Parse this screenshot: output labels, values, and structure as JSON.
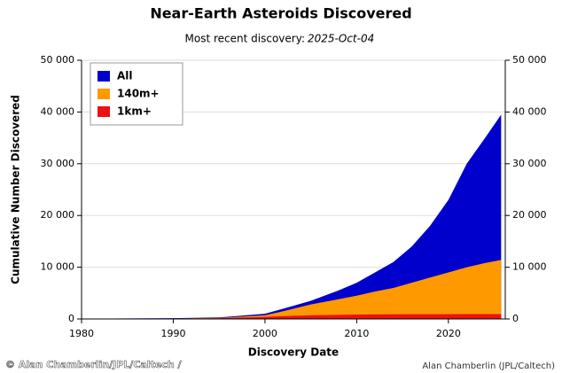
{
  "chart_data": {
    "type": "area",
    "title": "Near-Earth Asteroids Discovered",
    "subtitle": "Most recent discovery:",
    "subtitle_date": "2025-Oct-04",
    "x_label": "Discovery Date",
    "y_label": "Cumulative Number Discovered",
    "credit": "Alan Chamberlin (JPL/Caltech)",
    "watermark": "© Alan Chamberlin/JPL/Caltech /",
    "x": [
      1980,
      1990,
      1995,
      2000,
      2002,
      2005,
      2008,
      2010,
      2012,
      2014,
      2016,
      2018,
      2020,
      2022,
      2024,
      2025.75
    ],
    "series": [
      {
        "name": "All",
        "color": "#0000cc",
        "values": [
          50,
          150,
          300,
          1000,
          2000,
          3500,
          5500,
          7000,
          9000,
          11000,
          14000,
          18000,
          23000,
          30000,
          35000,
          39500
        ]
      },
      {
        "name": "140m+",
        "color": "#ff9900",
        "values": [
          20,
          80,
          200,
          700,
          1500,
          2800,
          3800,
          4500,
          5300,
          6000,
          7000,
          8000,
          9000,
          10000,
          10800,
          11400
        ]
      },
      {
        "name": "1km+",
        "color": "#ee1111",
        "values": [
          10,
          50,
          150,
          400,
          550,
          700,
          800,
          850,
          880,
          900,
          910,
          920,
          930,
          940,
          945,
          950
        ]
      }
    ],
    "xlim": [
      1980,
      2026.2
    ],
    "xticks": [
      1980,
      1990,
      2000,
      2010,
      2020
    ],
    "ylim": [
      0,
      50000
    ],
    "yticks": [
      0,
      {
        "value": 10000,
        "label": "10 000"
      },
      {
        "value": 20000,
        "label": "20 000"
      },
      {
        "value": 30000,
        "label": "30 000"
      },
      {
        "value": 40000,
        "label": "40 000"
      },
      {
        "value": 50000,
        "label": "50 000"
      }
    ],
    "grid": true,
    "legend": "upper-left"
  }
}
